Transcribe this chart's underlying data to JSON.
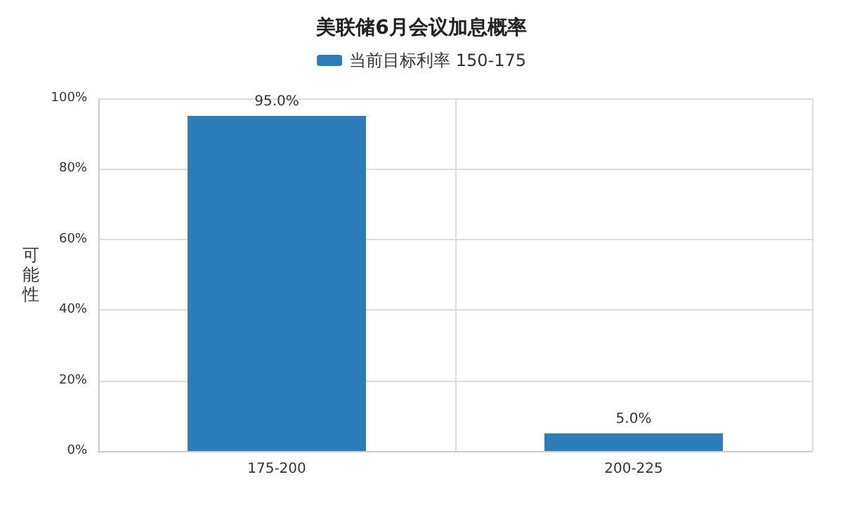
{
  "chart_data": {
    "type": "bar",
    "title": "美联储6月会议加息概率",
    "ylabel": "可能性",
    "categories": [
      "175-200",
      "200-225"
    ],
    "series": [
      {
        "name": "当前目标利率 150-175",
        "color": "#2e7dbb",
        "values": [
          95.0,
          5.0
        ],
        "value_labels": [
          "95.0%",
          "5.0%"
        ]
      }
    ],
    "ylim": [
      0,
      100
    ],
    "yticks": [
      {
        "value": 0,
        "label": "0%"
      },
      {
        "value": 20,
        "label": "20%"
      },
      {
        "value": 40,
        "label": "40%"
      },
      {
        "value": 60,
        "label": "60%"
      },
      {
        "value": 80,
        "label": "80%"
      },
      {
        "value": 100,
        "label": "100%"
      }
    ],
    "grid": true,
    "legend": "top"
  }
}
